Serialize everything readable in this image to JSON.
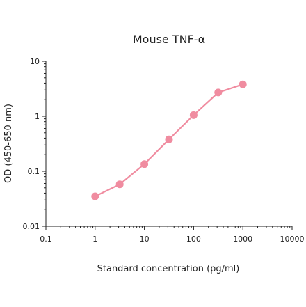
{
  "chart_data": {
    "type": "line",
    "title": "Mouse TNF-α",
    "xlabel": "Standard concentration (pg/ml)",
    "ylabel": "OD (450-650 nm)",
    "x_scale": "log",
    "y_scale": "log",
    "xlim": [
      0.1,
      10000
    ],
    "ylim": [
      0.01,
      10
    ],
    "x_ticks": [
      0.1,
      1,
      10,
      100,
      1000,
      10000
    ],
    "x_tick_labels": [
      "0.1",
      "1",
      "10",
      "100",
      "1000",
      "10000"
    ],
    "y_ticks": [
      0.01,
      0.1,
      1,
      10
    ],
    "y_tick_labels": [
      "0.01",
      "0.1",
      "1",
      "10"
    ],
    "grid": false,
    "series": [
      {
        "color": "#f08ca0",
        "x": [
          1,
          3.16,
          10,
          31.6,
          100,
          316,
          1000
        ],
        "y": [
          0.035,
          0.058,
          0.135,
          0.38,
          1.05,
          2.7,
          3.8
        ]
      }
    ]
  }
}
